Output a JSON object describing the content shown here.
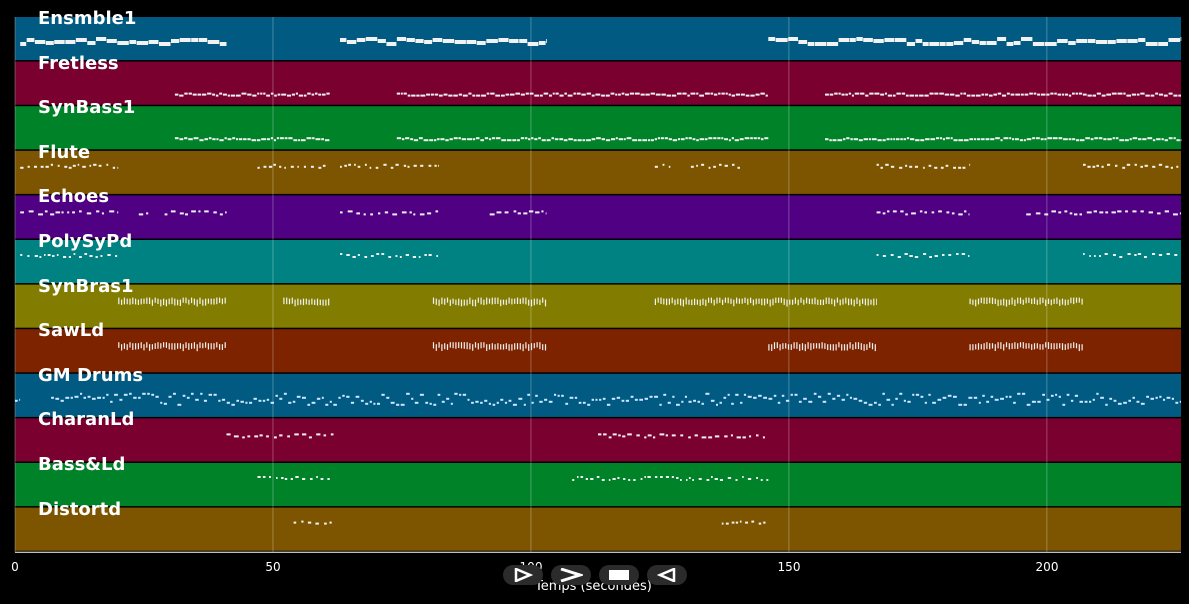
{
  "timeline": {
    "xaxis": {
      "title": "Temps (secondes)",
      "ticks": [
        "0",
        "50",
        "100",
        "150",
        "200"
      ],
      "tick_values": [
        0,
        50,
        100,
        150,
        200
      ],
      "range": [
        0,
        226
      ]
    },
    "tracks": [
      {
        "name": "Ensmble1",
        "color": "#005a82",
        "notes": "sustained",
        "segments": [
          [
            1,
            41
          ],
          [
            63,
            103
          ],
          [
            146,
            226
          ]
        ]
      },
      {
        "name": "Fretless",
        "color": "#7a0030",
        "notes": "bass",
        "segments": [
          [
            31,
            61
          ],
          [
            74,
            146
          ],
          [
            157,
            226
          ]
        ]
      },
      {
        "name": "SynBass1",
        "color": "#008228",
        "notes": "bass",
        "segments": [
          [
            31,
            61
          ],
          [
            74,
            146
          ],
          [
            157,
            226
          ]
        ]
      },
      {
        "name": "Flute",
        "color": "#7d5500",
        "notes": "sparse",
        "segments": [
          [
            1,
            20
          ],
          [
            47,
            55
          ],
          [
            56,
            61
          ],
          [
            63,
            82
          ],
          [
            124,
            127
          ],
          [
            131,
            141
          ],
          [
            167,
            185
          ],
          [
            207,
            226
          ]
        ]
      },
      {
        "name": "Echoes",
        "color": "#500082",
        "notes": "melody",
        "segments": [
          [
            1,
            20
          ],
          [
            24,
            26
          ],
          [
            29,
            41
          ],
          [
            63,
            82
          ],
          [
            92,
            103
          ],
          [
            167,
            185
          ],
          [
            196,
            226
          ]
        ]
      },
      {
        "name": "PolySyPd",
        "color": "#008282",
        "notes": "sparse",
        "segments": [
          [
            1,
            20
          ],
          [
            63,
            82
          ],
          [
            167,
            185
          ],
          [
            207,
            226
          ]
        ]
      },
      {
        "name": "SynBras1",
        "color": "#827d00",
        "notes": "dense",
        "segments": [
          [
            20,
            41
          ],
          [
            52,
            61
          ],
          [
            81,
            103
          ],
          [
            124,
            167
          ],
          [
            185,
            207
          ]
        ]
      },
      {
        "name": "SawLd",
        "color": "#7d2300",
        "notes": "dense",
        "segments": [
          [
            20,
            41
          ],
          [
            81,
            103
          ],
          [
            146,
            167
          ],
          [
            185,
            207
          ]
        ]
      },
      {
        "name": "GM Drums",
        "color": "#005a82",
        "notes": "drums",
        "segments": [
          [
            0,
            1
          ],
          [
            7,
            226
          ]
        ]
      },
      {
        "name": "CharanLd",
        "color": "#7a0030",
        "notes": "melody",
        "segments": [
          [
            41,
            62
          ],
          [
            113,
            146
          ]
        ]
      },
      {
        "name": "Bass&Ld",
        "color": "#008228",
        "notes": "sparse",
        "segments": [
          [
            47,
            61
          ],
          [
            108,
            146
          ]
        ]
      },
      {
        "name": "Distortd",
        "color": "#7d5500",
        "notes": "sparse",
        "segments": [
          [
            54,
            62
          ],
          [
            137,
            146
          ]
        ]
      }
    ]
  },
  "transport": {
    "buttons": [
      {
        "name": "play-icon"
      },
      {
        "name": "fast-forward-icon"
      },
      {
        "name": "stop-icon"
      },
      {
        "name": "rewind-icon"
      }
    ]
  }
}
